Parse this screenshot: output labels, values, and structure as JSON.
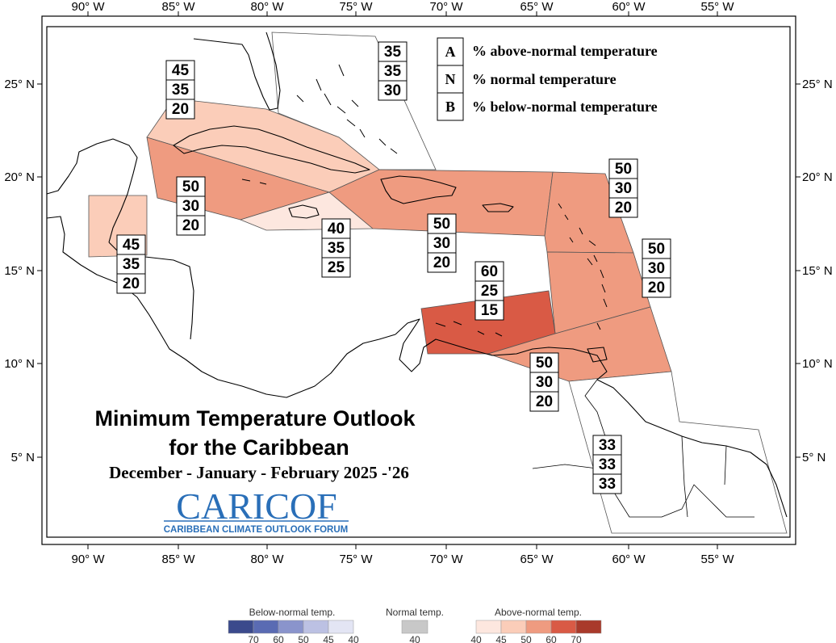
{
  "map": {
    "title_line1": "Minimum Temperature Outlook",
    "title_line2": "for the Caribbean",
    "period": "December - January - February 2025 -'26",
    "logo_text": "CARICOF",
    "logo_subtitle": "CARIBBEAN CLIMATE OUTLOOK FORUM",
    "lon_labels": [
      "90° W",
      "85° W",
      "80° W",
      "75° W",
      "70° W",
      "65° W",
      "60° W",
      "55° W"
    ],
    "lat_labels": [
      "25° N",
      "20° N",
      "15° N",
      "10° N",
      "5° N"
    ],
    "legend": [
      {
        "key": "A",
        "desc": "% above-normal temperature"
      },
      {
        "key": "N",
        "desc": "% normal temperature"
      },
      {
        "key": "B",
        "desc": "% below-normal temperature"
      }
    ],
    "regions": [
      {
        "id": "bahamas",
        "a": "35",
        "n": "35",
        "b": "30",
        "color": "#ffffff"
      },
      {
        "id": "cuba",
        "a": "45",
        "n": "35",
        "b": "20",
        "color": "#fbcdb9"
      },
      {
        "id": "caymans",
        "a": "50",
        "n": "30",
        "b": "20",
        "color": "#ef9b80"
      },
      {
        "id": "belize",
        "a": "45",
        "n": "35",
        "b": "20",
        "color": "#fbcdb9"
      },
      {
        "id": "jamaica",
        "a": "40",
        "n": "35",
        "b": "25",
        "color": "#fde7df"
      },
      {
        "id": "hispaniola",
        "a": "50",
        "n": "30",
        "b": "20",
        "color": "#ef9b80"
      },
      {
        "id": "leeward",
        "a": "50",
        "n": "30",
        "b": "20",
        "color": "#ef9b80"
      },
      {
        "id": "windward",
        "a": "50",
        "n": "30",
        "b": "20",
        "color": "#ef9b80"
      },
      {
        "id": "abc-islands",
        "a": "60",
        "n": "25",
        "b": "15",
        "color": "#d95a45"
      },
      {
        "id": "trinidad",
        "a": "50",
        "n": "30",
        "b": "20",
        "color": "#ef9b80"
      },
      {
        "id": "guianas",
        "a": "33",
        "n": "33",
        "b": "33",
        "color": "#ffffff"
      }
    ],
    "scale": {
      "below_title": "Below-normal temp.",
      "normal_title": "Normal temp.",
      "above_title": "Above-normal temp.",
      "below_colors": [
        "#3b4a8c",
        "#5a6bb3",
        "#8a94cc",
        "#bcc1e3",
        "#e3e5f4"
      ],
      "below_ticks": [
        "70",
        "60",
        "50",
        "45",
        "40"
      ],
      "normal_color": "#c8c8c8",
      "normal_tick": "40",
      "above_colors": [
        "#fde7df",
        "#fbcdb9",
        "#ef9b80",
        "#d95a45",
        "#a93a2b"
      ],
      "above_ticks": [
        "40",
        "45",
        "50",
        "60",
        "70"
      ]
    }
  }
}
